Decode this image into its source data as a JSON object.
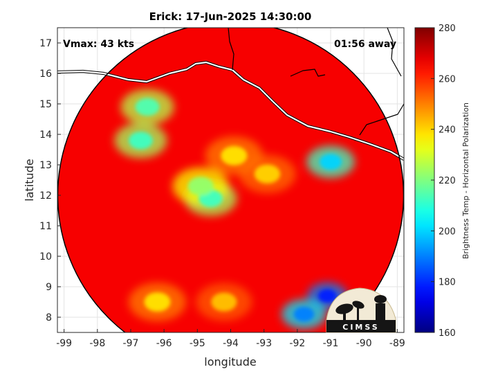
{
  "chart_data": {
    "type": "heatmap",
    "title": "Erick: 17-Jun-2025 14:30:00",
    "annotations": {
      "left": "Vmax: 43 kts",
      "right": "01:56 away"
    },
    "xlabel": "longitude",
    "ylabel": "latitude",
    "xlim": [
      -99.2,
      -88.8
    ],
    "ylim": [
      7.5,
      17.5
    ],
    "xticks": [
      -99,
      -98,
      -97,
      -96,
      -95,
      -94,
      -93,
      -92,
      -91,
      -90,
      -89
    ],
    "yticks": [
      8,
      9,
      10,
      11,
      12,
      13,
      14,
      15,
      16,
      17
    ],
    "grid": true,
    "colorbar": {
      "label": "Brightness Temp - Horizontal Polarization",
      "range": [
        160,
        280
      ],
      "ticks": [
        160,
        180,
        200,
        220,
        240,
        260,
        280
      ],
      "colormap": "jet"
    },
    "swath_center": {
      "lon": -94.0,
      "lat": 12.0
    },
    "background_temp": 266,
    "features": [
      {
        "name": "rainband-inner",
        "lon": -94.6,
        "lat": 11.9,
        "temp": 212
      },
      {
        "name": "rainband-arc-west",
        "lon": -94.9,
        "lat": 12.3,
        "temp": 222
      },
      {
        "name": "rainband-north",
        "lon": -93.9,
        "lat": 13.3,
        "temp": 238
      },
      {
        "name": "rainband-east",
        "lon": -92.9,
        "lat": 12.7,
        "temp": 240
      },
      {
        "name": "convection-west-1",
        "lon": -96.7,
        "lat": 13.8,
        "temp": 212
      },
      {
        "name": "convection-west-2",
        "lon": -96.5,
        "lat": 14.9,
        "temp": 214
      },
      {
        "name": "convection-east",
        "lon": -91.0,
        "lat": 13.1,
        "temp": 200
      },
      {
        "name": "convection-se-1",
        "lon": -91.1,
        "lat": 8.7,
        "temp": 178
      },
      {
        "name": "convection-se-2",
        "lon": -91.8,
        "lat": 8.1,
        "temp": 190
      },
      {
        "name": "convection-sw",
        "lon": -96.2,
        "lat": 8.5,
        "temp": 238
      },
      {
        "name": "convection-south",
        "lon": -94.2,
        "lat": 8.5,
        "temp": 242
      }
    ]
  },
  "logo": {
    "text": "CIMSS"
  }
}
